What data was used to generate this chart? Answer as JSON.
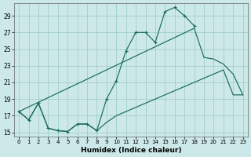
{
  "background_color": "#cce8e8",
  "grid_color": "#99ccbb",
  "line_color": "#1a6b5a",
  "xlabel": "Humidex (Indice chaleur)",
  "xlim": [
    -0.5,
    23.5
  ],
  "ylim": [
    14.5,
    30.5
  ],
  "yticks": [
    15,
    17,
    19,
    21,
    23,
    25,
    27,
    29
  ],
  "xticks": [
    0,
    1,
    2,
    3,
    4,
    5,
    6,
    7,
    8,
    9,
    10,
    11,
    12,
    13,
    14,
    15,
    16,
    17,
    18,
    19,
    20,
    21,
    22,
    23
  ],
  "curve_marker_x": [
    0,
    1,
    2,
    3,
    4,
    5,
    6,
    7,
    8,
    9,
    10,
    11,
    12,
    13,
    14,
    15,
    16,
    17,
    18
  ],
  "curve_marker_y": [
    17.5,
    16.5,
    18.5,
    15.5,
    15.2,
    15.1,
    16.0,
    16.0,
    15.2,
    19.0,
    21.2,
    24.8,
    27.0,
    27.0,
    25.8,
    29.5,
    30.0,
    29.0,
    27.8
  ],
  "curve_upper_env_x": [
    0,
    18,
    19,
    20,
    21,
    22,
    23
  ],
  "curve_upper_env_y": [
    17.5,
    27.5,
    24.0,
    23.8,
    23.2,
    22.0,
    19.5
  ],
  "curve_lower_env_x": [
    0,
    1,
    2,
    3,
    4,
    5,
    6,
    7,
    8,
    9,
    10,
    11,
    12,
    13,
    14,
    15,
    16,
    17,
    18,
    19,
    20,
    21,
    22,
    23
  ],
  "curve_lower_env_y": [
    17.5,
    16.5,
    18.5,
    15.5,
    15.2,
    15.1,
    16.0,
    16.0,
    15.2,
    16.2,
    17.0,
    17.5,
    18.0,
    18.5,
    19.0,
    19.5,
    20.0,
    20.5,
    21.0,
    21.5,
    22.0,
    22.5,
    19.5,
    19.5
  ]
}
